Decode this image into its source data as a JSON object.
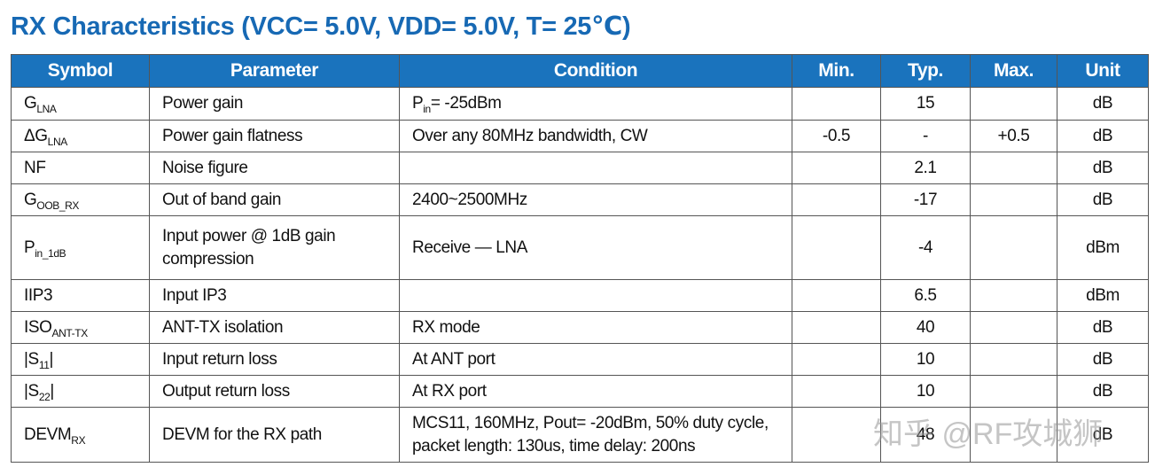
{
  "title": "RX Characteristics (VCC= 5.0V, VDD= 5.0V, T= 25℃)",
  "table": {
    "header": [
      "Symbol",
      "Parameter",
      "Condition",
      "Min.",
      "Typ.",
      "Max.",
      "Unit"
    ],
    "rows": [
      [
        {
          "base": "G",
          "sub": "LNA"
        },
        "Power gain",
        {
          "base": "P",
          "sub": "in",
          "tail": "= -25dBm"
        },
        null,
        "15",
        null,
        "dB"
      ],
      [
        {
          "base": "ΔG",
          "sub": "LNA"
        },
        "Power gain flatness",
        "Over any 80MHz bandwidth, CW",
        "-0.5",
        "-",
        "+0.5",
        "dB"
      ],
      [
        "NF",
        "Noise figure",
        null,
        null,
        "2.1",
        null,
        "dB"
      ],
      [
        {
          "base": "G",
          "sub": "OOB_RX"
        },
        "Out of band gain",
        "2400~2500MHz",
        null,
        "-17",
        null,
        "dB"
      ],
      [
        {
          "base": "P",
          "sub": "in_1dB"
        },
        "Input power @ 1dB gain compression",
        "Receive — LNA",
        null,
        "-4",
        null,
        "dBm"
      ],
      [
        "IIP3",
        "Input IP3",
        null,
        null,
        "6.5",
        null,
        "dBm"
      ],
      [
        {
          "base": "ISO",
          "sub": "ANT-TX"
        },
        "ANT-TX isolation",
        "RX mode",
        null,
        "40",
        null,
        "dB"
      ],
      [
        {
          "base": "|S",
          "sub": "11",
          "tail": "|"
        },
        "Input return loss",
        "At ANT port",
        null,
        "10",
        null,
        "dB"
      ],
      [
        {
          "base": "|S",
          "sub": "22",
          "tail": "|"
        },
        "Output return loss",
        "At RX port",
        null,
        "10",
        null,
        "dB"
      ],
      [
        {
          "base": "DEVM",
          "sub": "RX"
        },
        "DEVM for the RX path",
        [
          "MCS11, 160MHz, Pout= -20dBm, 50% duty cycle,",
          "packet length: 130us, time delay: 200ns"
        ],
        null,
        "48",
        null,
        "dB"
      ]
    ]
  },
  "watermark": "知乎 @RF攻城狮"
}
